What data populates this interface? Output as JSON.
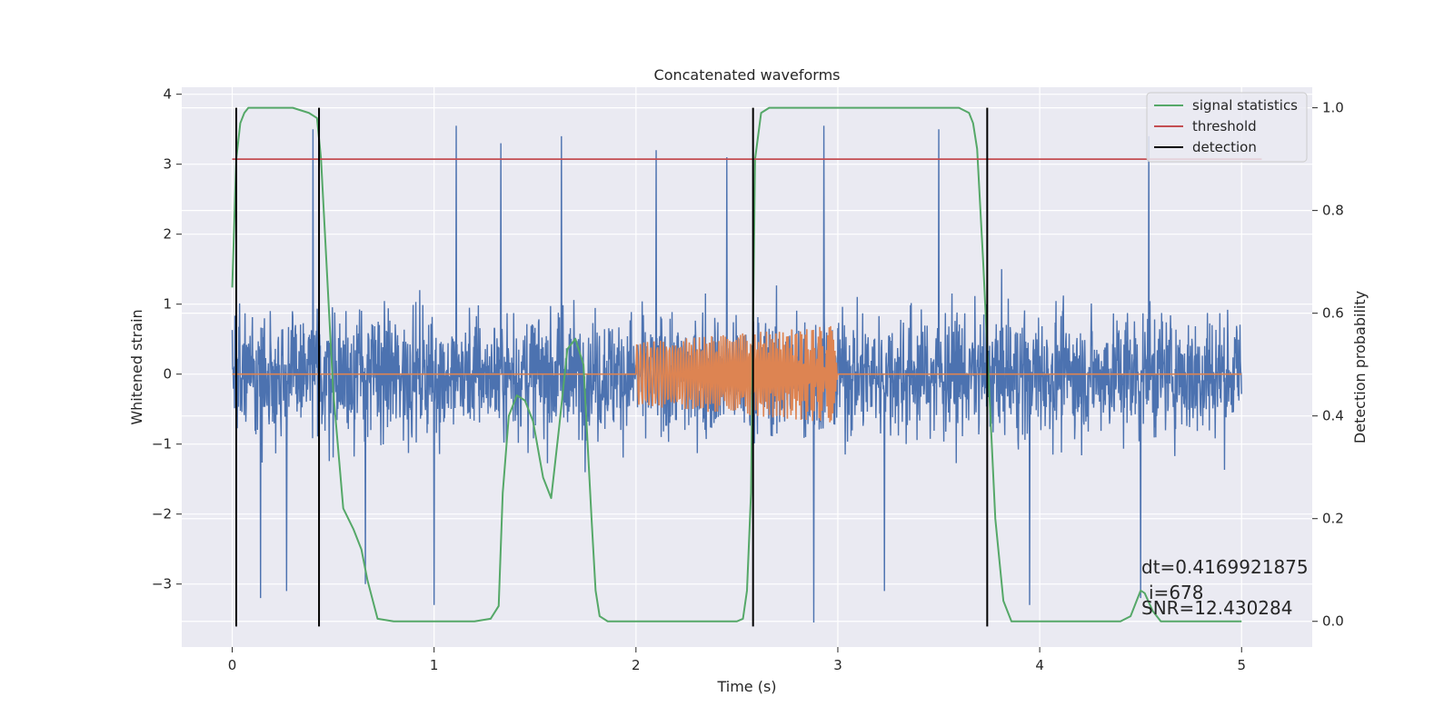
{
  "chart_data": {
    "type": "line",
    "title": "Concatenated waveforms",
    "xlabel": "Time (s)",
    "ylabel": "Whitened strain",
    "ylabel_right": "Detection probability",
    "xlim": [
      -0.25,
      5.35
    ],
    "ylim": [
      -3.9,
      4.1
    ],
    "ylim_right": [
      -0.05,
      1.04
    ],
    "x_ticks": [
      0,
      1,
      2,
      3,
      4,
      5
    ],
    "x_tick_labels": [
      "0",
      "1",
      "2",
      "3",
      "4",
      "5"
    ],
    "y_ticks": [
      -3,
      -2,
      -1,
      0,
      1,
      2,
      3,
      4
    ],
    "y_tick_labels": [
      "−3",
      "−2",
      "−1",
      "0",
      "1",
      "2",
      "3",
      "4"
    ],
    "y_right_ticks": [
      0.0,
      0.2,
      0.4,
      0.6,
      0.8,
      1.0
    ],
    "y_right_tick_labels": [
      "0.0",
      "0.2",
      "0.4",
      "0.6",
      "0.8",
      "1.0"
    ],
    "grid": true,
    "legend_position": "top-right",
    "colors": {
      "strain": "#4c72b0",
      "waveform": "#dd8452",
      "signal_statistics": "#55a868",
      "threshold": "#c44e52",
      "detection": "#000000",
      "background": "#eaeaf2"
    },
    "series": [
      {
        "name": "signal statistics",
        "axis": "right",
        "x": [
          0.0,
          0.02,
          0.04,
          0.06,
          0.08,
          0.1,
          0.2,
          0.3,
          0.38,
          0.42,
          0.44,
          0.48,
          0.5,
          0.55,
          0.6,
          0.64,
          0.67,
          0.72,
          0.8,
          1.0,
          1.2,
          1.28,
          1.32,
          1.34,
          1.37,
          1.41,
          1.45,
          1.49,
          1.54,
          1.58,
          1.62,
          1.66,
          1.7,
          1.74,
          1.78,
          1.8,
          1.82,
          1.86,
          1.95,
          2.2,
          2.5,
          2.53,
          2.55,
          2.57,
          2.59,
          2.62,
          2.66,
          2.8,
          3.2,
          3.5,
          3.6,
          3.65,
          3.67,
          3.69,
          3.72,
          3.75,
          3.78,
          3.82,
          3.86,
          4.0,
          4.4,
          4.45,
          4.48,
          4.5,
          4.52,
          4.56,
          4.6,
          4.8,
          5.0
        ],
        "values": [
          0.65,
          0.9,
          0.97,
          0.99,
          1.0,
          1.0,
          1.0,
          1.0,
          0.99,
          0.98,
          0.9,
          0.6,
          0.45,
          0.22,
          0.18,
          0.14,
          0.08,
          0.005,
          0.0,
          0.0,
          0.0,
          0.005,
          0.03,
          0.25,
          0.4,
          0.44,
          0.43,
          0.39,
          0.28,
          0.24,
          0.38,
          0.53,
          0.55,
          0.5,
          0.2,
          0.06,
          0.01,
          0.0,
          0.0,
          0.0,
          0.0,
          0.005,
          0.06,
          0.25,
          0.9,
          0.99,
          1.0,
          1.0,
          1.0,
          1.0,
          1.0,
          0.99,
          0.97,
          0.92,
          0.7,
          0.45,
          0.2,
          0.04,
          0.0,
          0.0,
          0.0,
          0.01,
          0.04,
          0.06,
          0.055,
          0.02,
          0.0,
          0.0,
          0.0
        ]
      },
      {
        "name": "threshold",
        "axis": "right",
        "x": [
          0.0,
          5.1
        ],
        "values": [
          0.9,
          0.9
        ]
      },
      {
        "name": "detection",
        "axis": "right",
        "x": [
          0.02,
          0.43,
          2.58,
          3.74
        ],
        "values": [
          [
            -0.01,
            1.0
          ],
          [
            -0.01,
            1.0
          ],
          [
            -0.01,
            1.0
          ],
          [
            -0.01,
            1.0
          ]
        ]
      },
      {
        "axis": "left",
        "description": "whitened strain noise",
        "x": [
          0,
          5
        ],
        "envelope": 1.6,
        "peak_times": [
          0.4,
          1.11,
          1.33,
          1.63,
          2.1,
          2.45,
          2.93,
          3.5,
          4.54
        ],
        "peak_values": [
          3.5,
          3.55,
          3.3,
          3.4,
          3.2,
          3.1,
          3.55,
          3.5,
          3.4
        ],
        "trough_times": [
          0.14,
          0.27,
          0.66,
          1.0,
          2.88,
          3.23,
          3.95,
          4.5
        ],
        "trough_values": [
          -3.2,
          -3.1,
          -3.0,
          -3.3,
          -3.55,
          -3.1,
          -3.3,
          -3.2
        ]
      },
      {
        "axis": "left",
        "description": "injected waveform",
        "x": [
          0,
          5
        ],
        "chirp_start": 2.0,
        "chirp_end": 3.0,
        "amplitude_start": 0.45,
        "amplitude_end": 0.7
      }
    ],
    "annotations": [
      "dt=0.4169921875",
      "i=678",
      "SNR=12.430284"
    ]
  }
}
